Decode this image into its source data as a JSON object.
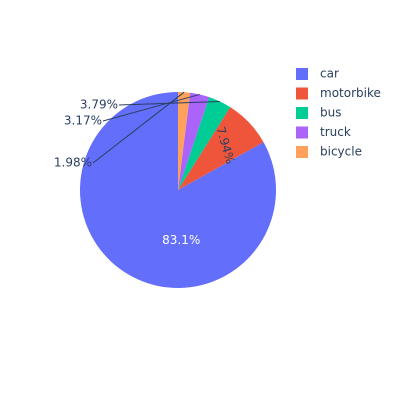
{
  "chart_data": {
    "type": "pie",
    "title": "",
    "categories": [
      "car",
      "motorbike",
      "bus",
      "truck",
      "bicycle"
    ],
    "values": [
      83.1,
      7.94,
      3.79,
      3.17,
      1.98
    ],
    "labels": [
      "83.1%",
      "7.94%",
      "3.79%",
      "3.17%",
      "1.98%"
    ],
    "colors": [
      "#636efa",
      "#ef553b",
      "#00cc96",
      "#ab63fa",
      "#ffa15a"
    ],
    "legend": {
      "position": "top-right",
      "entries": [
        "car",
        "motorbike",
        "bus",
        "truck",
        "bicycle"
      ]
    },
    "direction": "counterclockwise",
    "start_angle_degrees": 90
  }
}
